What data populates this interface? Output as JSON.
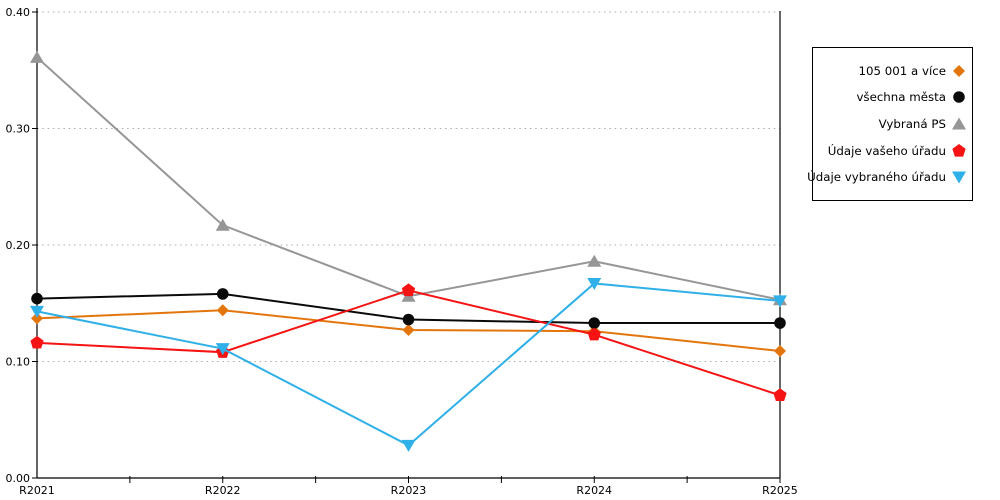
{
  "figure": {
    "background": "#ffffff",
    "axis_color": "#000000",
    "grid_color": "#ababab"
  },
  "chart_data": {
    "type": "line",
    "title": "",
    "categories": [
      "R2021",
      "R2022",
      "R2023",
      "R2024",
      "R2025"
    ],
    "y_tick_labels": [
      "0.00",
      "0.10",
      "0.20",
      "0.30",
      "0.40"
    ],
    "ylim": [
      0,
      0.4
    ],
    "y_tick_step": 0.1,
    "grid": "horizontal-dotted",
    "legend_position": "outside-right",
    "series": [
      {
        "name": "105 001 a více",
        "color": "#E2760D",
        "marker": "diamond",
        "values": [
          0.137,
          0.144,
          0.127,
          0.126,
          0.109
        ]
      },
      {
        "name": "všechna města",
        "color": "#0a0a0a",
        "marker": "circle",
        "values": [
          0.154,
          0.158,
          0.136,
          0.133,
          0.133
        ]
      },
      {
        "name": "Vybraná PS",
        "color": "#969696",
        "marker": "triangle-up",
        "values": [
          0.361,
          0.217,
          0.156,
          0.186,
          0.153
        ]
      },
      {
        "name": "Údaje vašeho úřadu",
        "color": "#F51313",
        "marker": "pentagon",
        "values": [
          0.116,
          0.108,
          0.161,
          0.123,
          0.071
        ]
      },
      {
        "name": "Údaje vybraného úřadu",
        "color": "#30B0E8",
        "marker": "triangle-down",
        "values": [
          0.143,
          0.111,
          0.028,
          0.167,
          0.152
        ]
      }
    ]
  }
}
